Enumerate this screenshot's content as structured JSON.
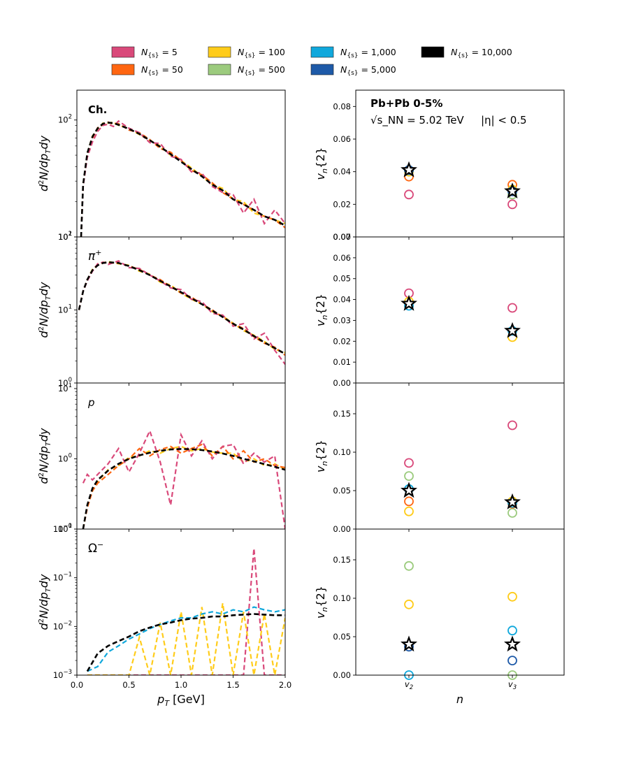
{
  "legend": [
    {
      "label": "N_{s} = 5",
      "sub": "{s}",
      "value": "5",
      "color": "#d9497a"
    },
    {
      "label": "N_{s} = 50",
      "sub": "{s}",
      "value": "50",
      "color": "#ff6611"
    },
    {
      "label": "N_{s} = 100",
      "sub": "{s}",
      "value": "100",
      "color": "#ffcc1a"
    },
    {
      "label": "N_{s} = 500",
      "sub": "{s}",
      "value": "500",
      "color": "#9ccb7e"
    },
    {
      "label": "N_{s} = 1,000",
      "sub": "{s}",
      "value": "1,000",
      "color": "#10a8dc"
    },
    {
      "label": "N_{s} = 5,000",
      "sub": "{s}",
      "value": "5,000",
      "color": "#1e5aa8"
    },
    {
      "label": "N_{s} = 10,000",
      "sub": "{s}",
      "value": "10,000",
      "color": "#000000"
    }
  ],
  "chart_data": [
    {
      "type": "line",
      "panel": "spectrum-charged",
      "label": "Ch.",
      "xlabel": "p_T [GeV]",
      "ylabel": "d²N/dp_Tdy",
      "yscale": "log",
      "ylim": [
        10,
        180
      ],
      "xlim": [
        0,
        2.0
      ],
      "x": [
        0.04,
        0.06,
        0.1,
        0.15,
        0.2,
        0.25,
        0.3,
        0.35,
        0.4,
        0.5,
        0.6,
        0.7,
        0.8,
        0.9,
        1.0,
        1.1,
        1.2,
        1.3,
        1.4,
        1.5,
        1.6,
        1.7,
        1.8,
        1.9,
        2.0
      ],
      "series": [
        {
          "name": "N_{s} = 10,000",
          "values": [
            10,
            28,
            52,
            72,
            85,
            93,
            95,
            94,
            91,
            84,
            76,
            67,
            59,
            51,
            44,
            38,
            33,
            28,
            25,
            21,
            19,
            17,
            15,
            14,
            12.5
          ]
        },
        {
          "name": "N_{s} = 5",
          "values": [
            10,
            27,
            48,
            65,
            80,
            90,
            92,
            88,
            98,
            85,
            78,
            64,
            63,
            49,
            46,
            36,
            35,
            27,
            24,
            23,
            16,
            21,
            13,
            17,
            13
          ]
        },
        {
          "name": "N_{s} = 50",
          "values": [
            10,
            28,
            51,
            70,
            86,
            91,
            96,
            92,
            93,
            82,
            78,
            68,
            57,
            53,
            45,
            37,
            34,
            29,
            24,
            21,
            19,
            17,
            15,
            14,
            12
          ]
        },
        {
          "name": "N_{s} = 100",
          "values": [
            10,
            28,
            52,
            73,
            84,
            94,
            94,
            96,
            90,
            85,
            75,
            67,
            60,
            50,
            45,
            39,
            33,
            28,
            26,
            21,
            20,
            16,
            15,
            14,
            13
          ]
        }
      ],
      "xticks": [
        "0.0",
        "0.5",
        "1.0",
        "1.5",
        "2.0"
      ],
      "yticks": [
        "10^1",
        "10^2"
      ]
    },
    {
      "type": "line",
      "panel": "spectrum-pion",
      "label": "π+",
      "xlabel": "p_T [GeV]",
      "ylabel": "d²N/dp_Tdy",
      "yscale": "log",
      "ylim": [
        1,
        100
      ],
      "xlim": [
        0,
        2.0
      ],
      "x": [
        0.02,
        0.06,
        0.1,
        0.15,
        0.2,
        0.25,
        0.3,
        0.4,
        0.5,
        0.6,
        0.7,
        0.8,
        0.9,
        1.0,
        1.1,
        1.2,
        1.3,
        1.4,
        1.5,
        1.6,
        1.7,
        1.8,
        1.9,
        2.0
      ],
      "series": [
        {
          "name": "N_{s} = 10,000",
          "values": [
            10,
            18,
            26,
            35,
            41,
            44,
            45,
            44,
            40,
            35,
            30,
            25,
            21,
            17.5,
            14.5,
            12,
            9.8,
            8,
            6.5,
            5.4,
            4.4,
            3.6,
            3,
            2.5
          ]
        },
        {
          "name": "N_{s} = 5",
          "values": [
            10,
            18,
            25,
            34,
            43,
            45,
            42,
            47,
            38,
            37,
            30,
            25,
            20,
            19,
            14,
            13,
            9,
            8.5,
            6,
            6.5,
            4,
            4.8,
            2.8,
            1.8
          ]
        },
        {
          "name": "N_{s} = 50",
          "values": [
            10,
            18,
            26,
            35,
            42,
            45,
            44,
            44,
            40,
            36,
            30,
            26,
            21,
            17,
            15,
            12,
            10,
            8,
            6.4,
            5.6,
            4.3,
            3.5,
            3.1,
            2.4
          ]
        },
        {
          "name": "N_{s} = 100",
          "values": [
            10,
            18,
            26,
            36,
            41,
            44,
            46,
            43,
            41,
            34,
            31,
            24,
            22,
            17,
            14,
            12,
            9.5,
            8.2,
            6.6,
            5.2,
            4.5,
            3.7,
            2.9,
            2.6
          ]
        }
      ],
      "xticks": [
        "0.0",
        "0.5",
        "1.0",
        "1.5",
        "2.0"
      ],
      "yticks": [
        "10^0",
        "10^1",
        "10^2"
      ]
    },
    {
      "type": "line",
      "panel": "spectrum-proton",
      "label": "p",
      "xlabel": "p_T [GeV]",
      "ylabel": "d²N/dp_Tdy",
      "yscale": "log",
      "ylim": [
        0.1,
        12
      ],
      "xlim": [
        0,
        2.0
      ],
      "x": [
        0.06,
        0.1,
        0.15,
        0.2,
        0.3,
        0.4,
        0.5,
        0.6,
        0.7,
        0.8,
        0.9,
        1.0,
        1.1,
        1.2,
        1.3,
        1.4,
        1.5,
        1.6,
        1.7,
        1.8,
        1.9,
        2.0
      ],
      "series": [
        {
          "name": "N_{s} = 10,000",
          "values": [
            0.1,
            0.22,
            0.38,
            0.5,
            0.68,
            0.85,
            1.0,
            1.12,
            1.22,
            1.3,
            1.36,
            1.38,
            1.37,
            1.33,
            1.27,
            1.19,
            1.1,
            1.0,
            0.92,
            0.84,
            0.77,
            0.7
          ]
        },
        {
          "name": "N_{s} = 5",
          "values": [
            0.45,
            0.6,
            0.5,
            0.6,
            0.85,
            1.4,
            0.65,
            1.2,
            2.5,
            0.9,
            0.22,
            2.2,
            1.1,
            1.8,
            1.0,
            1.5,
            1.6,
            0.85,
            1.2,
            0.9,
            1.1,
            0.1
          ]
        },
        {
          "name": "N_{s} = 50",
          "values": [
            0.1,
            0.2,
            0.35,
            0.45,
            0.6,
            0.8,
            1.0,
            1.4,
            1.1,
            1.35,
            1.5,
            1.2,
            1.4,
            1.6,
            1.1,
            1.5,
            1.0,
            1.3,
            0.9,
            1.0,
            0.8,
            0.75
          ]
        },
        {
          "name": "N_{s} = 100",
          "values": [
            0.1,
            0.22,
            0.35,
            0.48,
            0.7,
            0.8,
            1.05,
            1.1,
            1.3,
            1.2,
            1.4,
            1.5,
            1.3,
            1.4,
            1.25,
            1.2,
            1.2,
            0.9,
            1.0,
            0.8,
            0.85,
            0.7
          ]
        }
      ],
      "xticks": [
        "0.0",
        "0.5",
        "1.0",
        "1.5",
        "2.0"
      ],
      "yticks": [
        "10^-1",
        "10^0",
        "10^1"
      ]
    },
    {
      "type": "line",
      "panel": "spectrum-omega",
      "label": "Ω−",
      "xlabel": "p_T [GeV]",
      "ylabel": "d²N/dp_Tdy",
      "yscale": "log",
      "ylim": [
        0.001,
        1.0
      ],
      "xlim": [
        0,
        2.0
      ],
      "x": [
        0.1,
        0.2,
        0.3,
        0.4,
        0.5,
        0.6,
        0.7,
        0.8,
        0.9,
        1.0,
        1.1,
        1.2,
        1.3,
        1.4,
        1.5,
        1.6,
        1.7,
        1.8,
        1.9,
        2.0
      ],
      "series": [
        {
          "name": "N_{s} = 10,000",
          "values": [
            0.0012,
            0.0028,
            0.004,
            0.005,
            0.0062,
            0.008,
            0.0095,
            0.011,
            0.012,
            0.0135,
            0.0145,
            0.015,
            0.016,
            0.016,
            0.017,
            0.0175,
            0.018,
            0.0175,
            0.017,
            0.017
          ]
        },
        {
          "name": "N_{s} = 1,000",
          "values": [
            0.0012,
            0.0015,
            0.003,
            0.004,
            0.0055,
            0.007,
            0.009,
            0.011,
            0.013,
            0.015,
            0.015,
            0.018,
            0.02,
            0.018,
            0.022,
            0.02,
            0.025,
            0.022,
            0.02,
            0.022
          ]
        },
        {
          "name": "N_{s} = 100",
          "values": [
            0.001,
            0.001,
            0.001,
            0.001,
            0.001,
            0.006,
            0.001,
            0.012,
            0.001,
            0.02,
            0.001,
            0.025,
            0.001,
            0.03,
            0.001,
            0.02,
            0.001,
            0.018,
            0.001,
            0.015
          ]
        },
        {
          "name": "N_{s} = 5",
          "values": [
            0.001,
            0.001,
            0.001,
            0.001,
            0.001,
            0.001,
            0.001,
            0.001,
            0.001,
            0.001,
            0.001,
            0.001,
            0.001,
            0.001,
            0.001,
            0.001,
            0.4,
            0.001,
            0.001,
            0.001
          ]
        }
      ],
      "xticks": [
        "0.0",
        "0.5",
        "1.0",
        "1.5",
        "2.0"
      ],
      "yticks": [
        "10^-3",
        "10^-2",
        "10^-1",
        "10^0"
      ]
    },
    {
      "type": "scatter",
      "panel": "flow-charged",
      "ylabel": "v_n{2}",
      "ylim": [
        0,
        0.09
      ],
      "categories": [
        "v_2",
        "v_3"
      ],
      "yticks": [
        "0.00",
        "0.02",
        "0.04",
        "0.06",
        "0.08"
      ],
      "annotation": {
        "system": "Pb+Pb 0-5%",
        "energy": "√s_NN = 5.02 TeV",
        "eta": "|η| < 0.5"
      },
      "series": [
        {
          "name": "N_{s} = 5",
          "values": [
            0.026,
            0.02
          ]
        },
        {
          "name": "N_{s} = 50",
          "values": [
            0.037,
            0.032
          ]
        },
        {
          "name": "N_{s} = 100",
          "values": [
            0.04,
            0.029
          ]
        },
        {
          "name": "N_{s} = 500",
          "values": [
            0.041,
            0.026
          ]
        },
        {
          "name": "N_{s} = 1,000",
          "values": [
            0.041,
            0.028
          ]
        },
        {
          "name": "N_{s} = 5,000",
          "values": [
            0.041,
            0.028
          ]
        },
        {
          "name": "N_{s} = 10,000",
          "values": [
            0.041,
            0.028
          ]
        }
      ]
    },
    {
      "type": "scatter",
      "panel": "flow-pion",
      "ylabel": "v_n{2}",
      "ylim": [
        0,
        0.07
      ],
      "categories": [
        "v_2",
        "v_3"
      ],
      "yticks": [
        "0.00",
        "0.01",
        "0.02",
        "0.03",
        "0.04",
        "0.05",
        "0.06",
        "0.07"
      ],
      "series": [
        {
          "name": "N_{s} = 5",
          "values": [
            0.043,
            0.036
          ]
        },
        {
          "name": "N_{s} = 100",
          "values": [
            0.039,
            0.022
          ]
        },
        {
          "name": "N_{s} = 1,000",
          "values": [
            0.037,
            0.025
          ]
        },
        {
          "name": "N_{s} = 10,000",
          "values": [
            0.038,
            0.025
          ]
        }
      ]
    },
    {
      "type": "scatter",
      "panel": "flow-proton",
      "ylabel": "v_n{2}",
      "ylim": [
        0,
        0.19
      ],
      "categories": [
        "v_2",
        "v_3"
      ],
      "yticks": [
        "0.00",
        "0.05",
        "0.10",
        "0.15"
      ],
      "series": [
        {
          "name": "N_{s} = 5",
          "values": [
            0.086,
            0.135
          ]
        },
        {
          "name": "N_{s} = 500",
          "values": [
            0.069,
            0.021
          ]
        },
        {
          "name": "N_{s} = 50",
          "values": [
            0.036,
            0.033
          ]
        },
        {
          "name": "N_{s} = 100",
          "values": [
            0.023,
            0.036
          ]
        },
        {
          "name": "N_{s} = 1,000",
          "values": [
            0.052,
            0.034
          ]
        },
        {
          "name": "N_{s} = 10,000",
          "values": [
            0.05,
            0.035
          ]
        }
      ]
    },
    {
      "type": "scatter",
      "panel": "flow-omega",
      "ylabel": "v_n{2}",
      "ylim": [
        0,
        0.19
      ],
      "xlabel": "n",
      "categories": [
        "v_2",
        "v_3"
      ],
      "yticks": [
        "0.00",
        "0.05",
        "0.10",
        "0.15"
      ],
      "series": [
        {
          "name": "N_{s} = 500",
          "values": [
            0.142,
            0.0
          ]
        },
        {
          "name": "N_{s} = 100",
          "values": [
            0.092,
            0.102
          ]
        },
        {
          "name": "N_{s} = 1,000",
          "values": [
            0.0,
            0.058
          ]
        },
        {
          "name": "N_{s} = 5,000",
          "values": [
            0.037,
            0.019
          ]
        },
        {
          "name": "N_{s} = 10,000",
          "values": [
            0.04,
            0.04
          ]
        }
      ]
    }
  ]
}
